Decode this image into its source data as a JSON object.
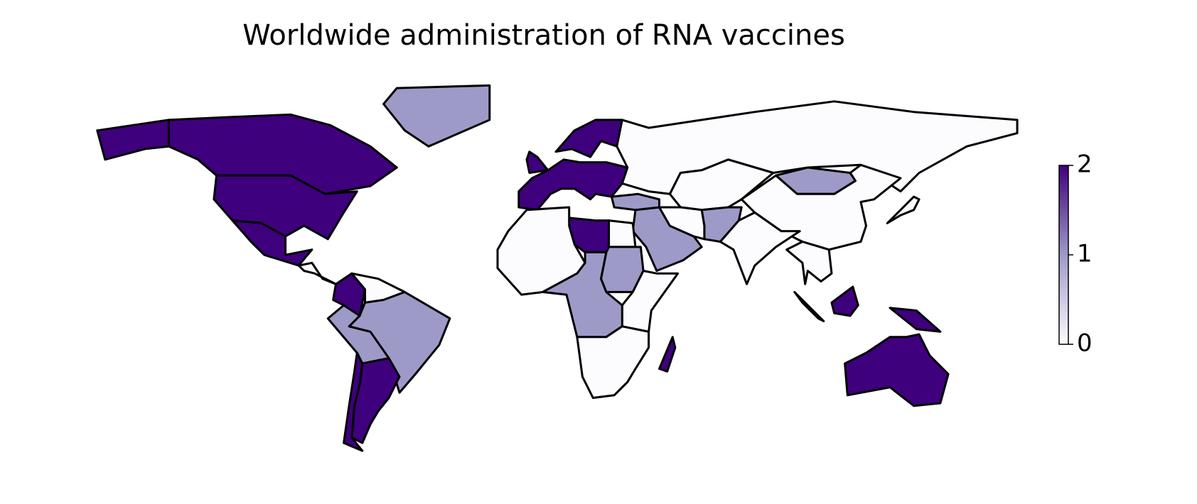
{
  "chart_data": {
    "type": "choropleth",
    "title": "Worldwide administration of RNA vaccines",
    "values": [
      2,
      2,
      2,
      2,
      0,
      1,
      2,
      0,
      1,
      1,
      2,
      2,
      2,
      2,
      2,
      0,
      0,
      1,
      0,
      1,
      0,
      0,
      1,
      1,
      0,
      2,
      0,
      1,
      0,
      0,
      1,
      0,
      2,
      2,
      2,
      2,
      2,
      0
    ],
    "colors": [
      "#fcfbfd",
      "#9e9ac8",
      "#3f007d"
    ],
    "clim": [
      0,
      2
    ],
    "cticks": [
      0,
      1,
      2
    ]
  }
}
